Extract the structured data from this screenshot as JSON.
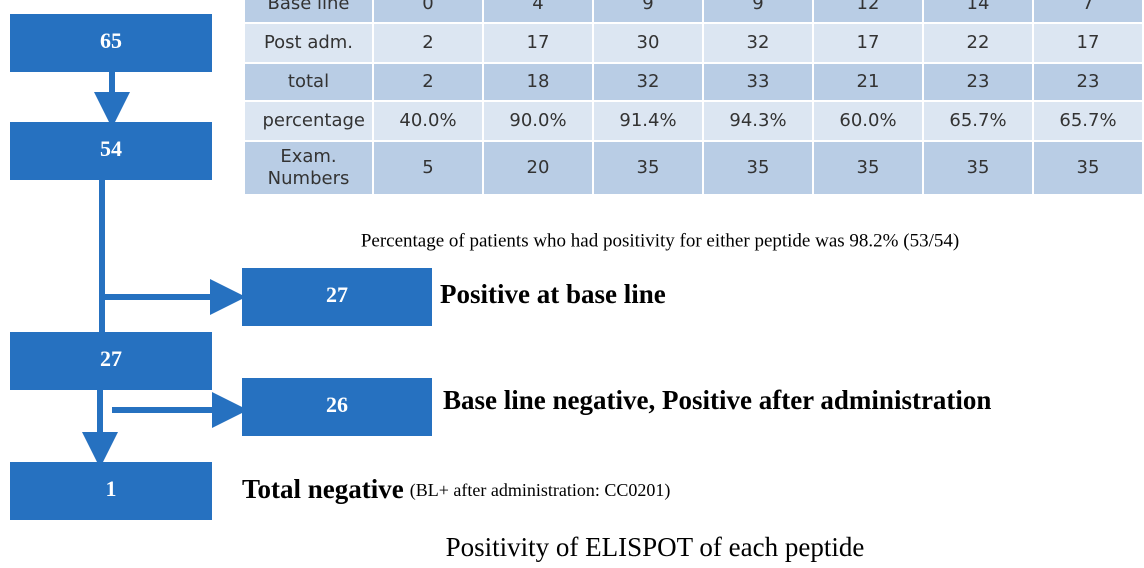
{
  "table": {
    "rows": [
      {
        "label": "Base line",
        "cells": [
          "0",
          "4",
          "9",
          "9",
          "12",
          "14",
          "7"
        ]
      },
      {
        "label": "Post adm.",
        "cells": [
          "2",
          "17",
          "30",
          "32",
          "17",
          "22",
          "17"
        ]
      },
      {
        "label": "total",
        "cells": [
          "2",
          "18",
          "32",
          "33",
          "21",
          "23",
          "23"
        ]
      },
      {
        "label": "percentage",
        "cells": [
          "40.0%",
          "90.0%",
          "91.4%",
          "94.3%",
          "60.0%",
          "65.7%",
          "65.7%"
        ]
      },
      {
        "label": "Exam. Numbers",
        "cells": [
          "5",
          "20",
          "35",
          "35",
          "35",
          "35",
          "35"
        ]
      }
    ]
  },
  "summary": "Percentage of patients who had positivity  for either peptide was 98.2% (53/54)",
  "nodes": [
    {
      "label": "65"
    },
    {
      "label": "54"
    },
    {
      "label": "27",
      "note": "Positive at base line"
    },
    {
      "label": "27"
    },
    {
      "label": "26",
      "note": "Base line negative, Positive after administration"
    },
    {
      "label": "1",
      "note": "Total negative",
      "detail": "(BL+ after administration: CC0201)"
    }
  ],
  "caption": "Positivity of ELISPOT of  each peptide"
}
